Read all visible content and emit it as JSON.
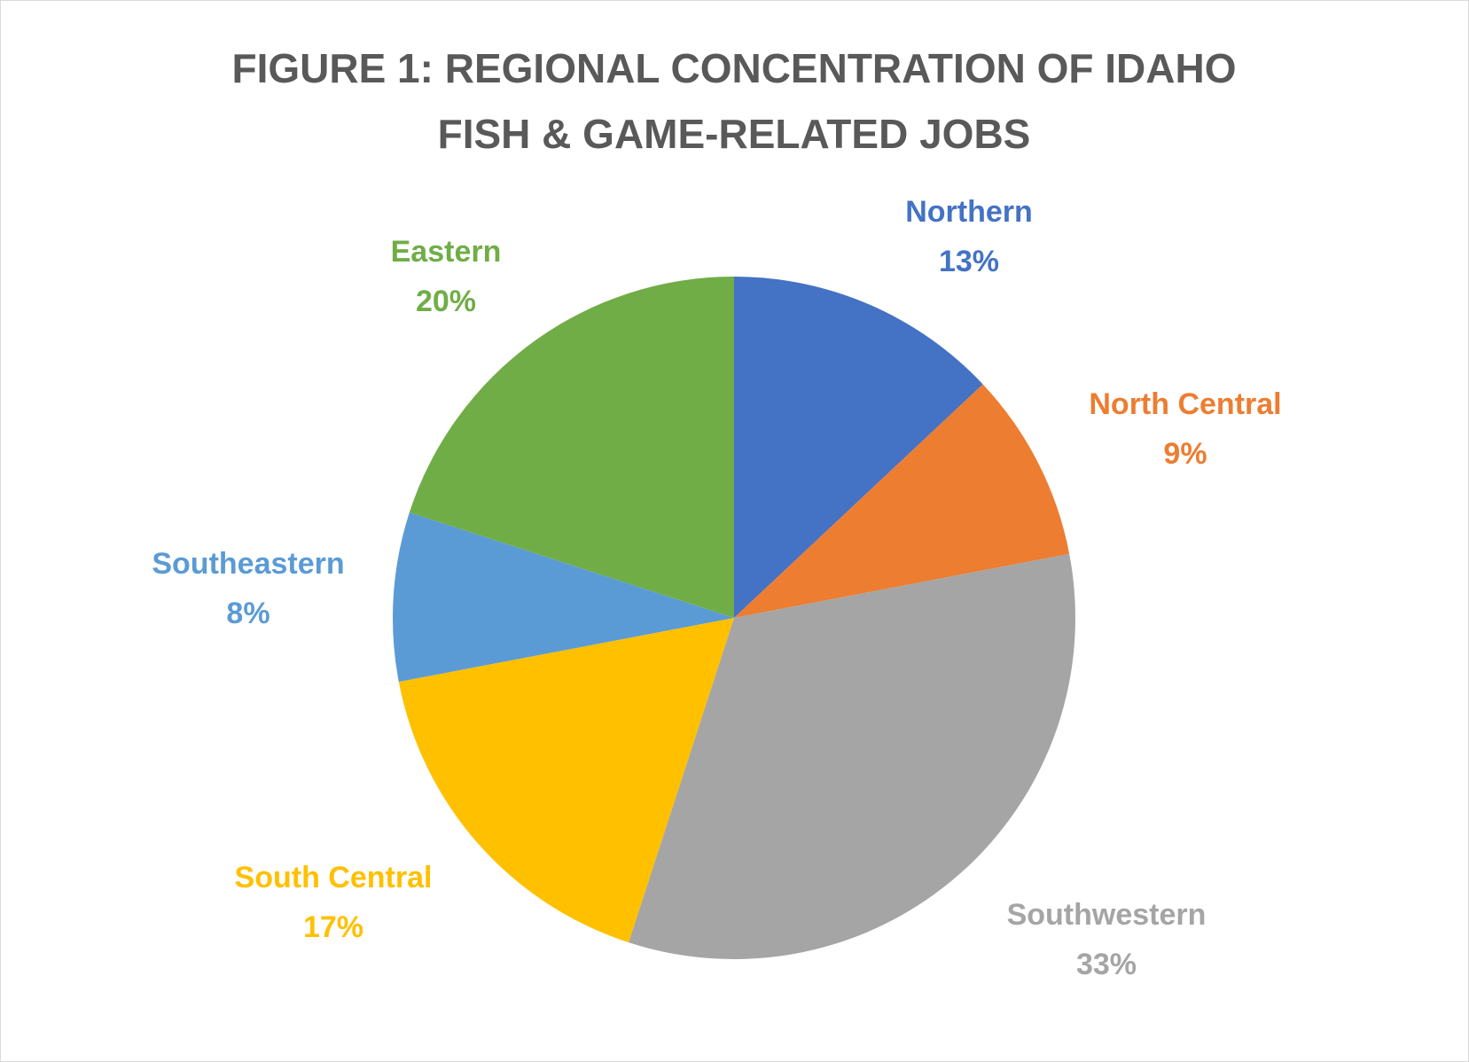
{
  "chart_data": {
    "type": "pie",
    "title": "FIGURE 1: REGIONAL CONCENTRATION OF IDAHO FISH & GAME-RELATED JOBS",
    "categories": [
      "Northern",
      "North Central",
      "Southwestern",
      "South Central",
      "Southeastern",
      "Eastern"
    ],
    "values": [
      13,
      9,
      33,
      17,
      8,
      20
    ],
    "value_labels": [
      "13%",
      "9%",
      "33%",
      "17%",
      "8%",
      "20%"
    ],
    "colors": [
      "#4472c4",
      "#ed7d31",
      "#a5a5a5",
      "#ffc000",
      "#5b9bd5",
      "#70ad47"
    ]
  }
}
